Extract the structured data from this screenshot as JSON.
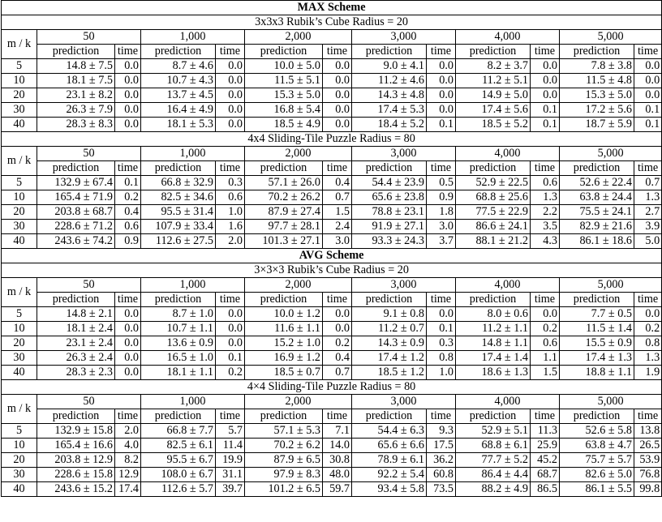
{
  "labels": {
    "mk": "m / k",
    "prediction": "prediction",
    "time": "time"
  },
  "blocks": [
    {
      "scheme": "MAX Scheme",
      "subtables": [
        {
          "title": "3x3x3 Rubik’s Cube    Radius = 20",
          "ks": [
            "50",
            "1,000",
            "2,000",
            "3,000",
            "4,000",
            "5,000"
          ],
          "rows": [
            {
              "m": "5",
              "cells": [
                [
                  "14.8 ± 7.5",
                  "0.0"
                ],
                [
                  "8.7 ± 4.6",
                  "0.0"
                ],
                [
                  "10.0 ± 5.0",
                  "0.0"
                ],
                [
                  "9.0 ± 4.1",
                  "0.0"
                ],
                [
                  "8.2 ± 3.7",
                  "0.0"
                ],
                [
                  "7.8 ± 3.8",
                  "0.0"
                ]
              ]
            },
            {
              "m": "10",
              "cells": [
                [
                  "18.1 ± 7.5",
                  "0.0"
                ],
                [
                  "10.7 ± 4.3",
                  "0.0"
                ],
                [
                  "11.5 ± 5.1",
                  "0.0"
                ],
                [
                  "11.2 ± 4.6",
                  "0.0"
                ],
                [
                  "11.2 ± 5.1",
                  "0.0"
                ],
                [
                  "11.5 ± 4.8",
                  "0.0"
                ]
              ]
            },
            {
              "m": "20",
              "cells": [
                [
                  "23.1 ± 8.2",
                  "0.0"
                ],
                [
                  "13.7 ± 4.5",
                  "0.0"
                ],
                [
                  "15.3 ± 5.0",
                  "0.0"
                ],
                [
                  "14.3 ± 4.8",
                  "0.0"
                ],
                [
                  "14.9 ± 5.0",
                  "0.0"
                ],
                [
                  "15.3 ± 5.0",
                  "0.0"
                ]
              ]
            },
            {
              "m": "30",
              "cells": [
                [
                  "26.3 ± 7.9",
                  "0.0"
                ],
                [
                  "16.4 ± 4.9",
                  "0.0"
                ],
                [
                  "16.8 ± 5.4",
                  "0.0"
                ],
                [
                  "17.4 ± 5.3",
                  "0.0"
                ],
                [
                  "17.4 ± 5.6",
                  "0.1"
                ],
                [
                  "17.2 ± 5.6",
                  "0.1"
                ]
              ]
            },
            {
              "m": "40",
              "cells": [
                [
                  "28.3 ± 8.3",
                  "0.0"
                ],
                [
                  "18.1 ± 5.3",
                  "0.0"
                ],
                [
                  "18.5 ± 4.9",
                  "0.0"
                ],
                [
                  "18.4 ± 5.2",
                  "0.1"
                ],
                [
                  "18.5 ± 5.2",
                  "0.1"
                ],
                [
                  "18.7 ± 5.9",
                  "0.1"
                ]
              ]
            }
          ]
        },
        {
          "title": "4x4 Sliding-Tile Puzzle    Radius = 80",
          "ks": [
            "50",
            "1,000",
            "2,000",
            "3,000",
            "4,000",
            "5,000"
          ],
          "rows": [
            {
              "m": "5",
              "cells": [
                [
                  "132.9 ± 67.4",
                  "0.1"
                ],
                [
                  "66.8 ± 32.9",
                  "0.3"
                ],
                [
                  "57.1 ± 26.0",
                  "0.4"
                ],
                [
                  "54.4 ± 23.9",
                  "0.5"
                ],
                [
                  "52.9 ± 22.5",
                  "0.6"
                ],
                [
                  "52.6 ± 22.4",
                  "0.7"
                ]
              ]
            },
            {
              "m": "10",
              "cells": [
                [
                  "165.4 ± 71.9",
                  "0.2"
                ],
                [
                  "82.5 ± 34.6",
                  "0.6"
                ],
                [
                  "70.2 ± 26.2",
                  "0.7"
                ],
                [
                  "65.6 ± 23.8",
                  "0.9"
                ],
                [
                  "68.8 ± 25.6",
                  "1.3"
                ],
                [
                  "63.8 ± 24.4",
                  "1.3"
                ]
              ]
            },
            {
              "m": "20",
              "cells": [
                [
                  "203.8 ± 68.7",
                  "0.4"
                ],
                [
                  "95.5 ± 31.4",
                  "1.0"
                ],
                [
                  "87.9 ± 27.4",
                  "1.5"
                ],
                [
                  "78.8 ± 23.1",
                  "1.8"
                ],
                [
                  "77.5 ± 22.9",
                  "2.2"
                ],
                [
                  "75.5 ± 24.1",
                  "2.7"
                ]
              ]
            },
            {
              "m": "30",
              "cells": [
                [
                  "228.6 ± 71.2",
                  "0.6"
                ],
                [
                  "107.9 ± 33.4",
                  "1.6"
                ],
                [
                  "97.7 ± 28.1",
                  "2.4"
                ],
                [
                  "91.9 ± 27.1",
                  "3.0"
                ],
                [
                  "86.6 ± 24.1",
                  "3.5"
                ],
                [
                  "82.9 ± 21.6",
                  "3.9"
                ]
              ]
            },
            {
              "m": "40",
              "cells": [
                [
                  "243.6 ± 74.2",
                  "0.9"
                ],
                [
                  "112.6 ± 27.5",
                  "2.0"
                ],
                [
                  "101.3 ± 27.1",
                  "3.0"
                ],
                [
                  "93.3 ± 24.3",
                  "3.7"
                ],
                [
                  "88.1 ± 21.2",
                  "4.3"
                ],
                [
                  "86.1 ± 18.6",
                  "5.0"
                ]
              ]
            }
          ]
        }
      ]
    },
    {
      "scheme": "AVG Scheme",
      "subtables": [
        {
          "title": "3×3×3 Rubik’s Cube    Radius = 20",
          "ks": [
            "50",
            "1,000",
            "2,000",
            "3,000",
            "4,000",
            "5,000"
          ],
          "rows": [
            {
              "m": "5",
              "cells": [
                [
                  "14.8 ± 2.1",
                  "0.0"
                ],
                [
                  "8.7 ± 1.0",
                  "0.0"
                ],
                [
                  "10.0 ± 1.2",
                  "0.0"
                ],
                [
                  "9.1 ± 0.8",
                  "0.0"
                ],
                [
                  "8.0 ± 0.6",
                  "0.0"
                ],
                [
                  "7.7 ± 0.5",
                  "0.0"
                ]
              ]
            },
            {
              "m": "10",
              "cells": [
                [
                  "18.1 ± 2.4",
                  "0.0"
                ],
                [
                  "10.7 ± 1.1",
                  "0.0"
                ],
                [
                  "11.6 ± 1.1",
                  "0.0"
                ],
                [
                  "11.2 ± 0.7",
                  "0.1"
                ],
                [
                  "11.2 ± 1.1",
                  "0.2"
                ],
                [
                  "11.5 ± 1.4",
                  "0.2"
                ]
              ]
            },
            {
              "m": "20",
              "cells": [
                [
                  "23.1 ± 2.4",
                  "0.0"
                ],
                [
                  "13.6 ± 0.9",
                  "0.0"
                ],
                [
                  "15.2 ± 1.0",
                  "0.2"
                ],
                [
                  "14.3 ± 0.9",
                  "0.3"
                ],
                [
                  "14.8 ± 1.1",
                  "0.6"
                ],
                [
                  "15.5 ± 0.9",
                  "0.8"
                ]
              ]
            },
            {
              "m": "30",
              "cells": [
                [
                  "26.3 ± 2.4",
                  "0.0"
                ],
                [
                  "16.5 ± 1.0",
                  "0.1"
                ],
                [
                  "16.9 ± 1.2",
                  "0.4"
                ],
                [
                  "17.4 ± 1.2",
                  "0.8"
                ],
                [
                  "17.4 ± 1.4",
                  "1.1"
                ],
                [
                  "17.4 ± 1.3",
                  "1.3"
                ]
              ]
            },
            {
              "m": "40",
              "cells": [
                [
                  "28.3 ± 2.3",
                  "0.0"
                ],
                [
                  "18.1 ± 1.1",
                  "0.2"
                ],
                [
                  "18.5 ± 0.7",
                  "0.7"
                ],
                [
                  "18.5 ± 1.2",
                  "1.0"
                ],
                [
                  "18.6 ± 1.3",
                  "1.5"
                ],
                [
                  "18.8 ± 1.1",
                  "1.9"
                ]
              ]
            }
          ]
        },
        {
          "title": "4×4 Sliding-Tile Puzzle    Radius = 80",
          "ks": [
            "50",
            "1,000",
            "2,000",
            "3,000",
            "4,000",
            "5,000"
          ],
          "rows": [
            {
              "m": "5",
              "cells": [
                [
                  "132.9 ± 15.8",
                  "2.0"
                ],
                [
                  "66.8 ± 7.7",
                  "5.7"
                ],
                [
                  "57.1 ± 5.3",
                  "7.1"
                ],
                [
                  "54.4 ± 6.3",
                  "9.3"
                ],
                [
                  "52.9 ± 5.1",
                  "11.3"
                ],
                [
                  "52.6 ± 5.8",
                  "13.8"
                ]
              ]
            },
            {
              "m": "10",
              "cells": [
                [
                  "165.4 ± 16.6",
                  "4.0"
                ],
                [
                  "82.5 ± 6.1",
                  "11.4"
                ],
                [
                  "70.2 ± 6.2",
                  "14.0"
                ],
                [
                  "65.6 ± 6.6",
                  "17.5"
                ],
                [
                  "68.8 ± 6.1",
                  "25.9"
                ],
                [
                  "63.8 ± 4.7",
                  "26.5"
                ]
              ]
            },
            {
              "m": "20",
              "cells": [
                [
                  "203.8 ± 12.9",
                  "8.2"
                ],
                [
                  "95.5 ± 6.7",
                  "19.9"
                ],
                [
                  "87.9 ± 6.5",
                  "30.8"
                ],
                [
                  "78.9 ± 6.1",
                  "36.2"
                ],
                [
                  "77.7 ± 5.2",
                  "45.2"
                ],
                [
                  "75.7 ± 5.7",
                  "53.9"
                ]
              ]
            },
            {
              "m": "30",
              "cells": [
                [
                  "228.6 ± 15.8",
                  "12.9"
                ],
                [
                  "108.0 ± 6.7",
                  "31.1"
                ],
                [
                  "97.9 ± 8.3",
                  "48.0"
                ],
                [
                  "92.2 ± 5.4",
                  "60.8"
                ],
                [
                  "86.4 ± 4.4",
                  "68.7"
                ],
                [
                  "82.6 ± 5.0",
                  "76.8"
                ]
              ]
            },
            {
              "m": "40",
              "cells": [
                [
                  "243.6 ± 15.2",
                  "17.4"
                ],
                [
                  "112.6 ± 5.7",
                  "39.7"
                ],
                [
                  "101.2 ± 6.5",
                  "59.7"
                ],
                [
                  "93.4 ± 5.8",
                  "73.5"
                ],
                [
                  "88.2 ± 4.9",
                  "86.5"
                ],
                [
                  "86.1 ± 5.5",
                  "99.8"
                ]
              ]
            }
          ]
        }
      ]
    }
  ]
}
